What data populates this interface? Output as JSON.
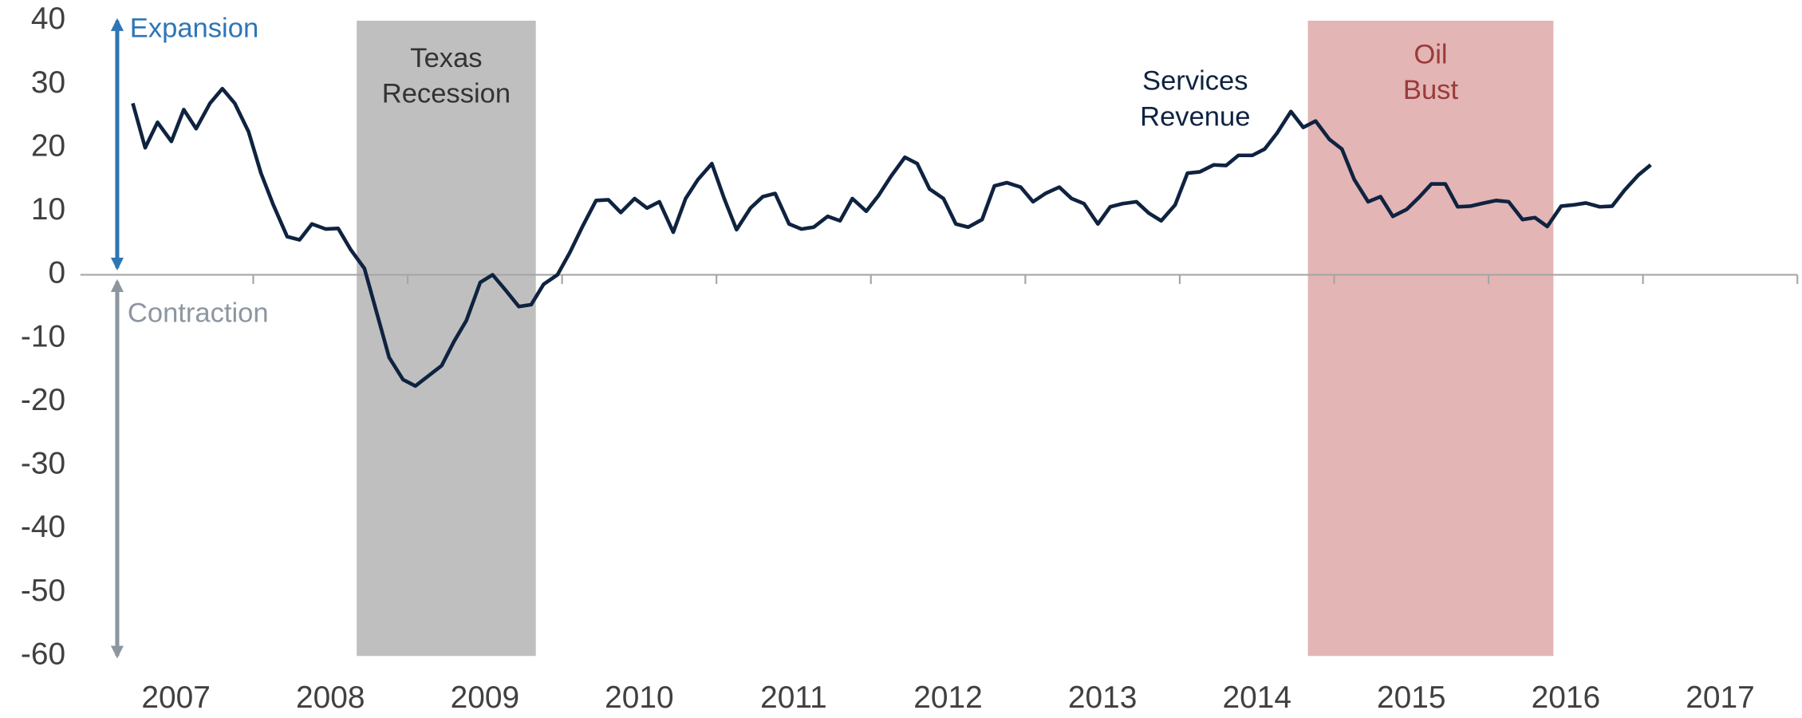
{
  "chart_data": {
    "type": "line",
    "xlim": [
      2007,
      2018
    ],
    "ylim": [
      -60,
      40
    ],
    "yticks": [
      -60,
      -50,
      -40,
      -30,
      -20,
      -10,
      0,
      10,
      20,
      30,
      40
    ],
    "xticks": [
      2008,
      2009,
      2010,
      2011,
      2012,
      2013,
      2014,
      2015,
      2016,
      2017
    ],
    "xtick_labels": [
      {
        "value": 2007.5,
        "label": "2007"
      },
      {
        "value": 2008.5,
        "label": "2008"
      },
      {
        "value": 2009.5,
        "label": "2009"
      },
      {
        "value": 2010.5,
        "label": "2010"
      },
      {
        "value": 2011.5,
        "label": "2011"
      },
      {
        "value": 2012.5,
        "label": "2012"
      },
      {
        "value": 2013.5,
        "label": "2013"
      },
      {
        "value": 2014.5,
        "label": "2014"
      },
      {
        "value": 2015.5,
        "label": "2015"
      },
      {
        "value": 2016.5,
        "label": "2016"
      },
      {
        "value": 2017.5,
        "label": "2017"
      }
    ],
    "bands": [
      {
        "label": "Texas Recession",
        "start": 2008.67,
        "end": 2009.83,
        "color": "#bfbfbf",
        "text_color": "#333333"
      },
      {
        "label": "Oil Bust",
        "start": 2014.83,
        "end": 2016.42,
        "color": "#e3b5b5",
        "text_color": "#9b3a3a"
      }
    ],
    "direction_labels": [
      {
        "label": "Expansion",
        "color": "#2e75b6"
      },
      {
        "label": "Contraction",
        "color": "#8c96a0"
      }
    ],
    "x": [
      2007.22,
      2007.3,
      2007.38,
      2007.47,
      2007.55,
      2007.63,
      2007.72,
      2007.8,
      2007.88,
      2007.97,
      2008.05,
      2008.13,
      2008.22,
      2008.3,
      2008.38,
      2008.47,
      2008.55,
      2008.63,
      2008.72,
      2008.8,
      2008.88,
      2008.97,
      2009.05,
      2009.13,
      2009.22,
      2009.3,
      2009.38,
      2009.47,
      2009.55,
      2009.63,
      2009.72,
      2009.8,
      2009.88,
      2009.97,
      2010.05,
      2010.13,
      2010.22,
      2010.3,
      2010.38,
      2010.47,
      2010.55,
      2010.63,
      2010.72,
      2010.8,
      2010.88,
      2010.97,
      2011.05,
      2011.13,
      2011.22,
      2011.3,
      2011.38,
      2011.47,
      2011.55,
      2011.63,
      2011.72,
      2011.8,
      2011.88,
      2011.97,
      2012.05,
      2012.13,
      2012.22,
      2012.3,
      2012.38,
      2012.47,
      2012.55,
      2012.63,
      2012.72,
      2012.8,
      2012.88,
      2012.97,
      2013.05,
      2013.13,
      2013.22,
      2013.3,
      2013.38,
      2013.47,
      2013.55,
      2013.63,
      2013.72,
      2013.8,
      2013.88,
      2013.97,
      2014.05,
      2014.13,
      2014.22,
      2014.3,
      2014.38,
      2014.47,
      2014.55,
      2014.63,
      2014.72,
      2014.8,
      2014.88,
      2014.97,
      2015.05,
      2015.13,
      2015.22,
      2015.3,
      2015.38,
      2015.47,
      2015.55,
      2015.63,
      2015.72,
      2015.8,
      2015.88,
      2015.97,
      2016.05,
      2016.13,
      2016.22,
      2016.3,
      2016.38,
      2016.47,
      2016.55,
      2016.63,
      2016.72,
      2016.8,
      2016.88,
      2016.97,
      2017.05
    ],
    "series": [
      {
        "name": "Services Revenue",
        "color": "#0f2340",
        "values": [
          27,
          20,
          24,
          21,
          26,
          23,
          27,
          29.3,
          27,
          22.5,
          16,
          11,
          6,
          5.5,
          8,
          7.2,
          7.3,
          4,
          1,
          -6,
          -13,
          -16.5,
          -17.5,
          -16,
          -14.3,
          -10.5,
          -7.2,
          -1.2,
          0,
          -2.3,
          -5,
          -4.7,
          -1.5,
          0,
          3.5,
          7.5,
          11.7,
          11.8,
          9.8,
          12,
          10.5,
          11.5,
          6.7,
          12,
          15,
          17.5,
          12,
          7.1,
          10.5,
          12.3,
          12.8,
          8,
          7.2,
          7.5,
          9.2,
          8.5,
          12,
          10,
          12.5,
          15.5,
          18.5,
          17.5,
          13.5,
          12,
          8,
          7.5,
          8.7,
          14,
          14.5,
          13.8,
          11.5,
          12.8,
          13.8,
          12,
          11.2,
          8,
          10.7,
          11.2,
          11.5,
          9.7,
          8.5,
          11,
          16,
          16.2,
          17.3,
          17.2,
          18.8,
          18.8,
          19.8,
          22.3,
          25.7,
          23.2,
          24.2,
          21.3,
          19.8,
          15,
          11.5,
          12.3,
          9.2,
          10.3,
          12.2,
          14.3,
          14.3,
          10.7,
          10.8,
          11.3,
          11.7,
          11.5,
          8.7,
          9,
          7.6,
          10.8,
          11,
          11.3,
          10.7,
          10.8,
          13.3,
          15.7,
          17.3
        ]
      }
    ]
  }
}
